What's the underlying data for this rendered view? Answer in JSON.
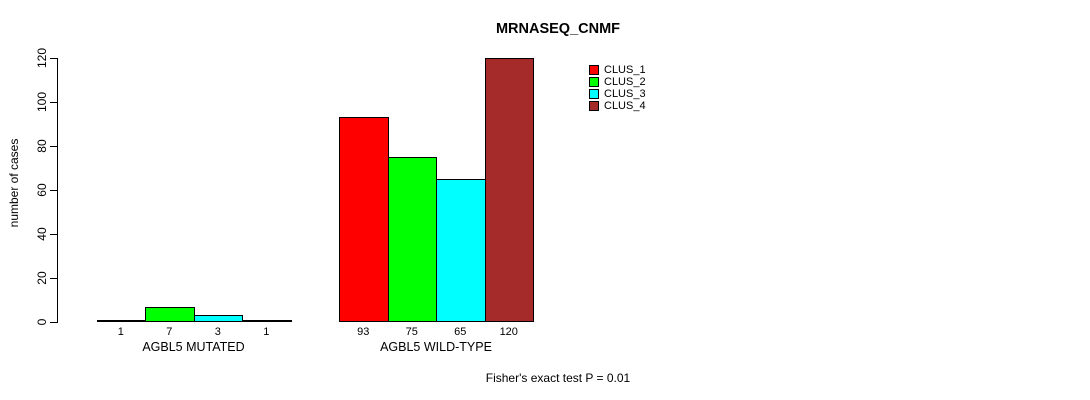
{
  "title": "MRNASEQ_CNMF",
  "ylabel": "number of cases",
  "footer": "Fisher's exact test P = 0.01",
  "legend": [
    {
      "label": "CLUS_1",
      "color": "#ff0000"
    },
    {
      "label": "CLUS_2",
      "color": "#00ff00"
    },
    {
      "label": "CLUS_3",
      "color": "#00ffff"
    },
    {
      "label": "CLUS_4",
      "color": "#a52a2a"
    }
  ],
  "chart_data": {
    "type": "bar",
    "title": "MRNASEQ_CNMF",
    "ylabel": "number of cases",
    "xlabel": "",
    "ylim": [
      0,
      120
    ],
    "yticks": [
      0,
      20,
      40,
      60,
      80,
      100,
      120
    ],
    "grid": false,
    "legend_position": "top-right",
    "series": [
      "CLUS_1",
      "CLUS_2",
      "CLUS_3",
      "CLUS_4"
    ],
    "colors": [
      "#ff0000",
      "#00ff00",
      "#00ffff",
      "#a52a2a"
    ],
    "groups": [
      {
        "label": "AGBL5 MUTATED",
        "values": [
          1,
          7,
          3,
          1
        ]
      },
      {
        "label": "AGBL5 WILD-TYPE",
        "values": [
          93,
          75,
          65,
          120
        ]
      }
    ],
    "annotation": "Fisher's exact test P = 0.01"
  }
}
